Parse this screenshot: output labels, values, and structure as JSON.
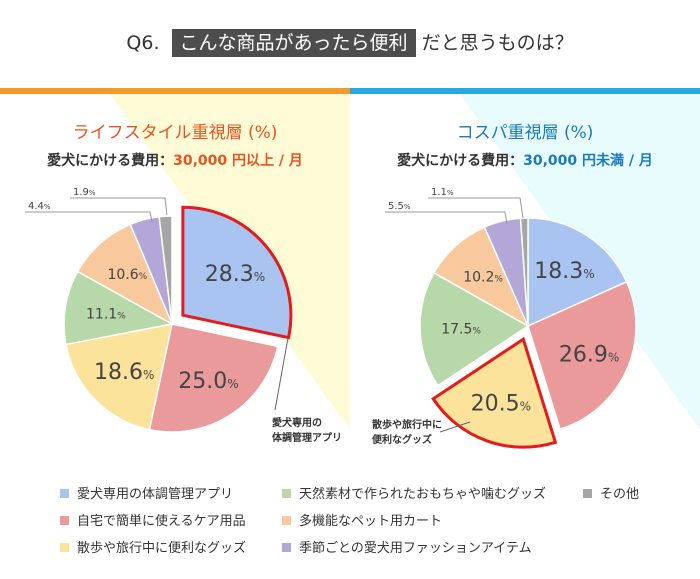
{
  "header": {
    "q": "Q6.",
    "highlight": "こんな商品があったら便利",
    "rest": "だと思うものは？"
  },
  "colors": {
    "orange_bar": "#f39a2e",
    "blue_bar": "#2aa7df",
    "left_title": "#e8541e",
    "right_title": "#1a7ac0",
    "highlight_outline": "#e51b1b"
  },
  "legend": [
    {
      "label": "愛犬専用の体調管理アプリ",
      "color": "#a9c4f0"
    },
    {
      "label": "自宅で簡単に使えるケア用品",
      "color": "#ea9a9a"
    },
    {
      "label": "散歩や旅行中に便利なグッズ",
      "color": "#fbe39c"
    },
    {
      "label": "天然素材で作られたおもちゃや噛むグッズ",
      "color": "#b7d8a9"
    },
    {
      "label": "多機能なペット用カート",
      "color": "#f7c99c"
    },
    {
      "label": "季節ごとの愛犬用ファッションアイテム",
      "color": "#b3a7d8"
    },
    {
      "label": "その他",
      "color": "#a6a6a6"
    }
  ],
  "chart_data": [
    {
      "type": "pie",
      "title": "ライフスタイル重視層 (%)",
      "subtitle_prefix": "愛犬にかける費用：",
      "subtitle_value": "30,000 円以上 / 月",
      "categories": [
        "愛犬専用の体調管理アプリ",
        "自宅で簡単に使えるケア用品",
        "散歩や旅行中に便利なグッズ",
        "天然素材で作られたおもちゃや噛むグッズ",
        "多機能なペット用カート",
        "季節ごとの愛犬用ファッションアイテム",
        "その他"
      ],
      "values": [
        28.3,
        25.0,
        18.6,
        11.1,
        10.6,
        4.4,
        1.9
      ],
      "labels": [
        "28.3",
        "25.0",
        "18.6",
        "11.1",
        "10.6",
        "4.4",
        "1.9"
      ],
      "unit": "%",
      "highlighted": 0,
      "annotation": [
        "愛犬専用の",
        "体調管理アプリ"
      ]
    },
    {
      "type": "pie",
      "title": "コスパ重視層 (%)",
      "subtitle_prefix": "愛犬にかける費用：",
      "subtitle_value": "30,000 円未満 / 月",
      "categories": [
        "愛犬専用の体調管理アプリ",
        "自宅で簡単に使えるケア用品",
        "散歩や旅行中に便利なグッズ",
        "天然素材で作られたおもちゃや噛むグッズ",
        "多機能なペット用カート",
        "季節ごとの愛犬用ファッションアイテム",
        "その他"
      ],
      "values": [
        18.3,
        26.9,
        20.5,
        17.5,
        10.2,
        5.5,
        1.1
      ],
      "labels": [
        "18.3",
        "26.9",
        "20.5",
        "17.5",
        "10.2",
        "5.5",
        "1.1"
      ],
      "unit": "%",
      "highlighted": 2,
      "annotation": [
        "散歩や旅行中に",
        "便利なグッズ"
      ]
    }
  ]
}
